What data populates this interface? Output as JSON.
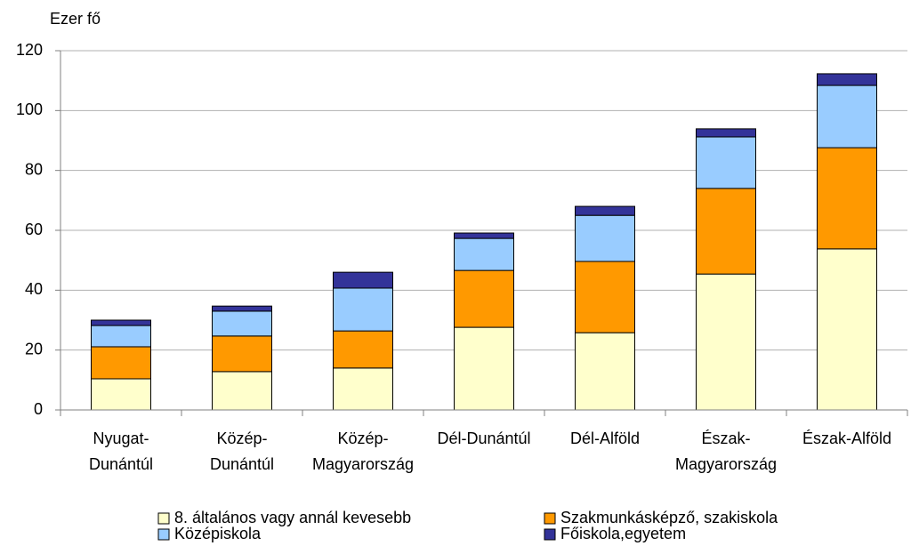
{
  "chart_data": {
    "type": "stacked_bar",
    "y_label": "Ezer fő",
    "categories": [
      [
        "Nyugat-",
        "Dunántúl"
      ],
      [
        "Közép-",
        "Dunántúl"
      ],
      [
        "Közép-",
        "Magyarország"
      ],
      [
        "Dél-Dunántúl"
      ],
      [
        "Dél-Alföld"
      ],
      [
        "Észak-",
        "Magyarország"
      ],
      [
        "Észak-Alföld"
      ]
    ],
    "series": [
      {
        "name": "8. általános vagy annál kevesebb",
        "color": "#ffffcc",
        "values": [
          10.4,
          12.8,
          14.0,
          27.6,
          25.8,
          45.4,
          53.8
        ]
      },
      {
        "name": "Szakmunkásképző, szakiskola",
        "color": "#ff9900",
        "values": [
          10.7,
          11.9,
          12.4,
          19.0,
          23.8,
          28.6,
          33.8
        ]
      },
      {
        "name": "Középiskola",
        "color": "#99ccff",
        "values": [
          7.1,
          8.3,
          14.3,
          10.7,
          15.4,
          17.2,
          20.8
        ]
      },
      {
        "name": "Főiskola,egyetem",
        "color": "#333399",
        "values": [
          1.8,
          1.7,
          5.3,
          1.8,
          3.0,
          2.7,
          3.9
        ]
      }
    ],
    "ylim": [
      0,
      120
    ],
    "yticks": [
      0,
      20,
      40,
      60,
      80,
      100,
      120
    ],
    "grid": true
  }
}
